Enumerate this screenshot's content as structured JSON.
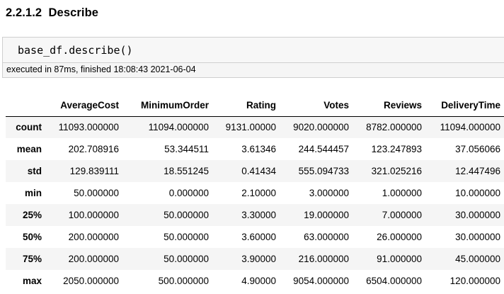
{
  "section_heading": "2.2.1.2  Describe",
  "code_cell": {
    "source": "base_df.describe()"
  },
  "execution_info": "executed in 87ms, finished 18:08:43 2021-06-04",
  "describe_table": {
    "index_header": "",
    "columns": [
      "AverageCost",
      "MinimumOrder",
      "Rating",
      "Votes",
      "Reviews",
      "DeliveryTime"
    ],
    "rows": [
      {
        "label": "count",
        "values": [
          "11093.000000",
          "11094.000000",
          "9131.00000",
          "9020.000000",
          "8782.000000",
          "11094.000000"
        ]
      },
      {
        "label": "mean",
        "values": [
          "202.708916",
          "53.344511",
          "3.61346",
          "244.544457",
          "123.247893",
          "37.056066"
        ]
      },
      {
        "label": "std",
        "values": [
          "129.839111",
          "18.551245",
          "0.41434",
          "555.094733",
          "321.025216",
          "12.447496"
        ]
      },
      {
        "label": "min",
        "values": [
          "50.000000",
          "0.000000",
          "2.10000",
          "3.000000",
          "1.000000",
          "10.000000"
        ]
      },
      {
        "label": "25%",
        "values": [
          "100.000000",
          "50.000000",
          "3.30000",
          "19.000000",
          "7.000000",
          "30.000000"
        ]
      },
      {
        "label": "50%",
        "values": [
          "200.000000",
          "50.000000",
          "3.60000",
          "63.000000",
          "26.000000",
          "30.000000"
        ]
      },
      {
        "label": "75%",
        "values": [
          "200.000000",
          "50.000000",
          "3.90000",
          "216.000000",
          "91.000000",
          "45.000000"
        ]
      },
      {
        "label": "max",
        "values": [
          "2050.000000",
          "500.000000",
          "4.90000",
          "9054.000000",
          "6504.000000",
          "120.000000"
        ]
      }
    ]
  }
}
